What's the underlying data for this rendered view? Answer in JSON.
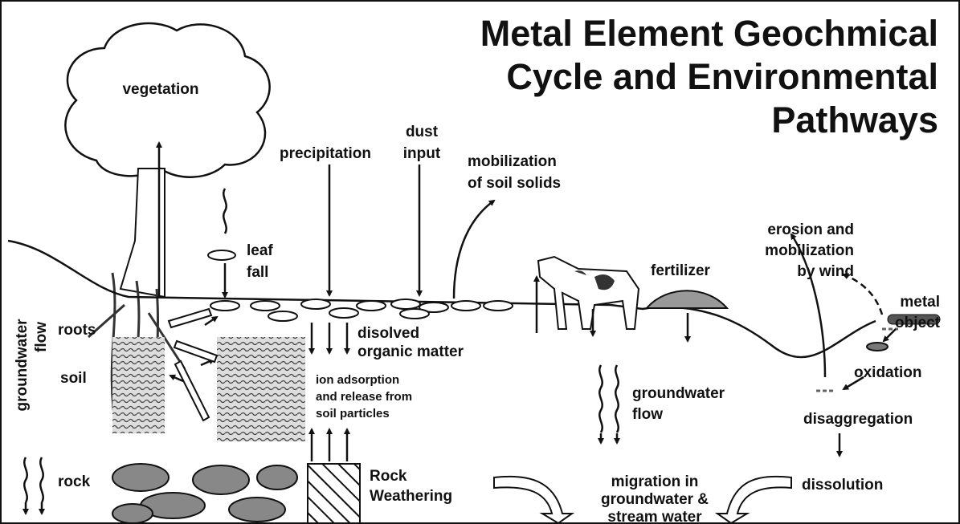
{
  "title": [
    "Metal Element Geochmical",
    "Cycle and Environmental",
    "Pathways"
  ],
  "labels": {
    "vegetation": [
      "vegetation"
    ],
    "precipitation": [
      "precipitation"
    ],
    "dust": [
      "dust",
      "input"
    ],
    "mobilization": [
      "mobilization",
      "of soil solids"
    ],
    "leaf": [
      "leaf",
      "fall"
    ],
    "roots": [
      "roots"
    ],
    "soil": [
      "soil"
    ],
    "rock": [
      "rock"
    ],
    "gwleft": [
      "groundwater",
      "flow"
    ],
    "dom": [
      "disolved",
      "organic matter"
    ],
    "ion": [
      "ion adsorption",
      "and release from",
      "soil particles"
    ],
    "weathering": [
      "Rock",
      "Weathering"
    ],
    "fertilizer": [
      "fertilizer"
    ],
    "erosion": [
      "erosion and",
      "mobilization",
      "by wind"
    ],
    "metal": [
      "metal",
      "object"
    ],
    "oxidation": [
      "oxidation"
    ],
    "disaggregation": [
      "disaggregation"
    ],
    "gwmid": [
      "groundwater",
      "flow"
    ],
    "migration": [
      "migration in",
      "groundwater &",
      "stream water"
    ],
    "dissolution": [
      "dissolution"
    ]
  }
}
